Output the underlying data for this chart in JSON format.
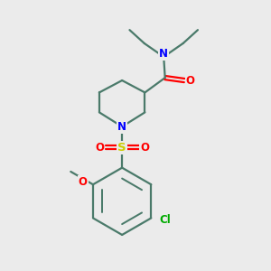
{
  "bg_color": "#ebebeb",
  "bond_color": "#4a7a6a",
  "n_color": "#0000ff",
  "o_color": "#ff0000",
  "s_color": "#cccc00",
  "cl_color": "#00aa00",
  "line_width": 1.6,
  "figsize": [
    3.0,
    3.0
  ],
  "dpi": 100,
  "xlim": [
    0,
    10
  ],
  "ylim": [
    0,
    10
  ]
}
